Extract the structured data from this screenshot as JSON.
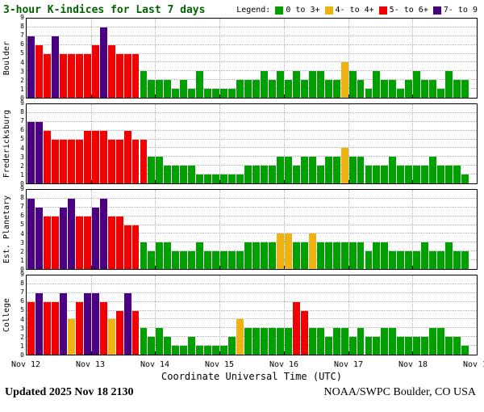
{
  "title": "3-hour K-indices for Last 7 days",
  "legend": {
    "label": "Legend:",
    "items": [
      {
        "label": "0 to 3+",
        "color": "#00a000"
      },
      {
        "label": "4- to 4+",
        "color": "#eeb211"
      },
      {
        "label": "5- to 6+",
        "color": "#f00000"
      },
      {
        "label": "7- to 9",
        "color": "#4b0082"
      }
    ]
  },
  "xaxis_title": "Coordinate Universal Time (UTC)",
  "footer": {
    "updated": "Updated 2025 Nov 18 2130",
    "credit": "NOAA/SWPC Boulder, CO USA"
  },
  "chart_data": {
    "type": "bar",
    "title": "3-hour K-indices for Last 7 days",
    "ylim": [
      0,
      9
    ],
    "y_ticks": [
      0,
      1,
      2,
      3,
      4,
      5,
      6,
      7,
      8,
      9
    ],
    "x_tick_labels": [
      "Nov 12",
      "Nov 13",
      "Nov 14",
      "Nov 15",
      "Nov 16",
      "Nov 17",
      "Nov 18",
      "Nov 19"
    ],
    "slots_per_day": 8,
    "grid": true,
    "legend_position": "top-right",
    "colors": {
      "green": "#00a000",
      "yellow": "#eeb211",
      "red": "#f00000",
      "purple": "#4b0082"
    },
    "color_rules": [
      {
        "range": "0 to 3+",
        "color": "green"
      },
      {
        "range": "4- to 4+",
        "color": "yellow"
      },
      {
        "range": "5- to 6+",
        "color": "red"
      },
      {
        "range": "7- to 9",
        "color": "purple"
      }
    ],
    "panels": [
      {
        "station": "Boulder",
        "values": [
          7,
          6,
          5,
          7,
          5,
          5,
          5,
          5,
          6,
          8,
          6,
          5,
          5,
          5,
          3,
          2,
          2,
          2,
          1,
          2,
          1,
          3,
          1,
          1,
          1,
          1,
          2,
          2,
          2,
          3,
          2,
          3,
          2,
          3,
          2,
          3,
          3,
          2,
          2,
          4,
          3,
          2,
          1,
          3,
          2,
          2,
          1,
          2,
          3,
          2,
          2,
          1,
          3,
          2,
          2
        ]
      },
      {
        "station": "Fredericksburg",
        "values": [
          7,
          7,
          6,
          5,
          5,
          5,
          5,
          6,
          6,
          6,
          5,
          5,
          6,
          5,
          5,
          3,
          3,
          2,
          2,
          2,
          2,
          1,
          1,
          1,
          1,
          1,
          1,
          2,
          2,
          2,
          2,
          3,
          3,
          2,
          3,
          3,
          2,
          3,
          3,
          4,
          3,
          3,
          2,
          2,
          2,
          3,
          2,
          2,
          2,
          2,
          3,
          2,
          2,
          2,
          1
        ]
      },
      {
        "station": "Est. Planetary",
        "values": [
          8,
          7,
          6,
          6,
          7,
          8,
          6,
          6,
          7,
          8,
          6,
          6,
          5,
          5,
          3,
          2,
          3,
          3,
          2,
          2,
          2,
          3,
          2,
          2,
          2,
          2,
          2,
          3,
          3,
          3,
          3,
          4,
          4,
          3,
          3,
          4,
          3,
          3,
          3,
          3,
          3,
          3,
          2,
          3,
          3,
          2,
          2,
          2,
          2,
          3,
          2,
          2,
          3,
          2,
          2
        ]
      },
      {
        "station": "College",
        "values": [
          6,
          7,
          6,
          6,
          7,
          4,
          6,
          7,
          7,
          6,
          4,
          5,
          7,
          5,
          3,
          2,
          3,
          2,
          1,
          1,
          2,
          1,
          1,
          1,
          1,
          2,
          4,
          3,
          3,
          3,
          3,
          3,
          3,
          6,
          5,
          3,
          3,
          2,
          3,
          3,
          2,
          3,
          2,
          2,
          3,
          3,
          2,
          2,
          2,
          2,
          3,
          3,
          2,
          2,
          1
        ]
      }
    ]
  }
}
